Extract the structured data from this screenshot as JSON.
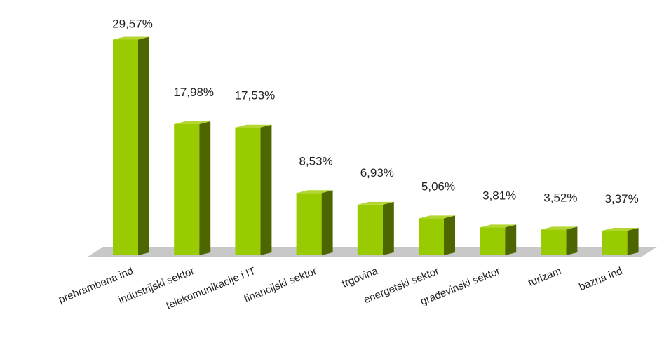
{
  "chart_data": {
    "type": "bar",
    "title": "",
    "xlabel": "",
    "ylabel": "",
    "ylim": [
      0,
      30
    ],
    "grid": false,
    "legend": "none",
    "categories": [
      "prehrambena ind",
      "industrijski sektor",
      "telekomunikacije i IT",
      "financijski sektor",
      "trgovina",
      "energetski sektor",
      "građevinski sektor",
      "turizam",
      "bazna ind"
    ],
    "values": [
      29.57,
      17.98,
      17.53,
      8.53,
      6.93,
      5.06,
      3.81,
      3.52,
      3.37
    ],
    "value_labels": [
      "29,57%",
      "17,98%",
      "17,53%",
      "8,53%",
      "6,93%",
      "5,06%",
      "3,81%",
      "3,52%",
      "3,37%"
    ],
    "colors": {
      "bar_front": "#99cc00",
      "bar_side": "#4d6600",
      "bar_top": "#b3d633",
      "floor": "#c8c8c8"
    }
  }
}
